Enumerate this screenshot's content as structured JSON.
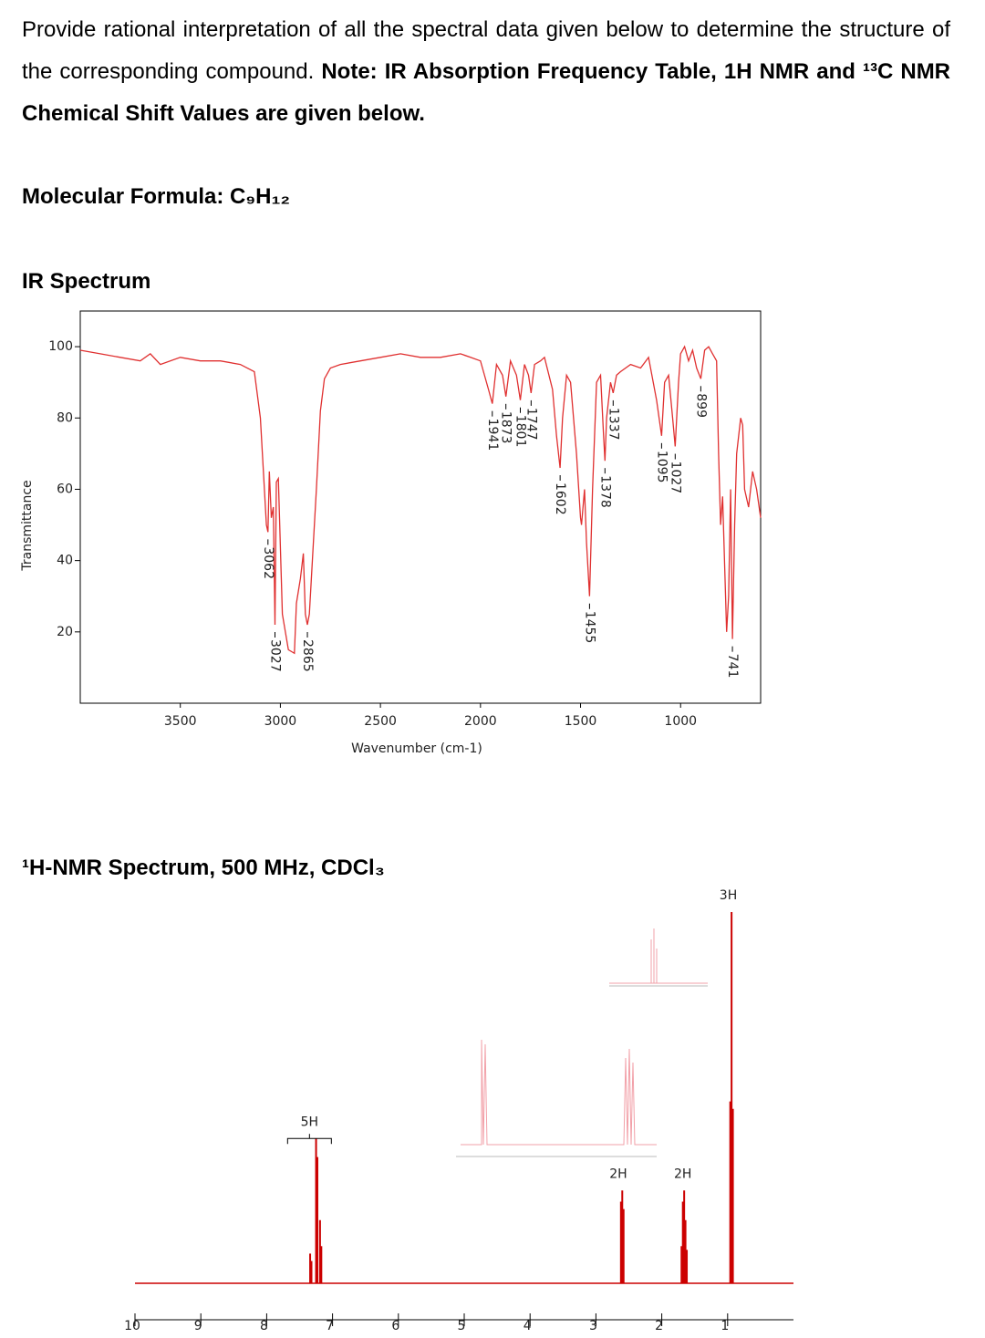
{
  "text": {
    "intro": "Provide rational interpretation of all the spectral data given below to determine the structure of the corresponding compound.",
    "note": "Note: IR Absorption Frequency Table, 1H NMR and ¹³C NMR Chemical Shift Values are given below.",
    "formula": "Molecular Formula: C₉H₁₂",
    "ir_heading": "IR Spectrum",
    "nmr_heading": "¹H-NMR Spectrum, 500 MHz, CDCl₃"
  },
  "chart_data": [
    {
      "type": "line",
      "xlabel": "Wavenumber (cm-1)",
      "ylabel": "Transmittance",
      "x": [
        4000,
        3900,
        3800,
        3700,
        3650,
        3600,
        3500,
        3400,
        3300,
        3200,
        3130,
        3100,
        3090,
        3070,
        3062,
        3055,
        3045,
        3035,
        3027,
        3020,
        3010,
        2990,
        2960,
        2930,
        2920,
        2900,
        2885,
        2875,
        2865,
        2855,
        2840,
        2820,
        2800,
        2780,
        2750,
        2700,
        2600,
        2500,
        2400,
        2300,
        2200,
        2100,
        2050,
        2000,
        1960,
        1941,
        1920,
        1890,
        1873,
        1850,
        1820,
        1801,
        1780,
        1760,
        1747,
        1730,
        1700,
        1680,
        1640,
        1620,
        1602,
        1590,
        1570,
        1550,
        1520,
        1500,
        1495,
        1480,
        1470,
        1455,
        1440,
        1420,
        1400,
        1385,
        1378,
        1370,
        1350,
        1337,
        1320,
        1300,
        1250,
        1200,
        1160,
        1120,
        1095,
        1080,
        1060,
        1040,
        1027,
        1010,
        1000,
        980,
        960,
        940,
        920,
        899,
        880,
        860,
        840,
        820,
        810,
        800,
        790,
        770,
        760,
        750,
        741,
        730,
        720,
        700,
        690,
        680,
        660,
        650,
        640,
        620,
        600
      ],
      "series": [
        {
          "color": "#e03030",
          "values": [
            99,
            98,
            97,
            96,
            98,
            95,
            97,
            96,
            96,
            95,
            93,
            80,
            70,
            50,
            48,
            65,
            52,
            55,
            22,
            62,
            63,
            25,
            15,
            14,
            28,
            35,
            42,
            25,
            22,
            25,
            40,
            60,
            82,
            91,
            94,
            95,
            96,
            97,
            98,
            97,
            97,
            98,
            97,
            96,
            88,
            84,
            95,
            92,
            86,
            96,
            92,
            85,
            95,
            92,
            87,
            95,
            96,
            97,
            88,
            75,
            66,
            80,
            92,
            90,
            70,
            52,
            50,
            60,
            45,
            30,
            60,
            90,
            92,
            75,
            68,
            80,
            90,
            87,
            92,
            93,
            95,
            94,
            97,
            85,
            75,
            90,
            92,
            80,
            72,
            90,
            98,
            100,
            96,
            99,
            94,
            91,
            99,
            100,
            98,
            96,
            70,
            50,
            58,
            20,
            30,
            60,
            18,
            50,
            70,
            80,
            78,
            60,
            55,
            60,
            65,
            60,
            52
          ]
        }
      ],
      "xlim": [
        4000,
        600
      ],
      "xticks": [
        3500,
        3000,
        2500,
        2000,
        1500,
        1000
      ],
      "ylim": [
        0,
        110
      ],
      "yticks": [
        20,
        40,
        60,
        80,
        100
      ],
      "peak_labels": [
        3062,
        3027,
        2865,
        1941,
        1873,
        1801,
        1747,
        1602,
        1455,
        1378,
        1337,
        1095,
        1027,
        899,
        741
      ]
    },
    {
      "type": "stem",
      "x": [
        7.34,
        7.32,
        7.25,
        7.23,
        7.19,
        7.17,
        2.62,
        2.6,
        2.58,
        1.7,
        1.68,
        1.66,
        1.64,
        1.62,
        0.96,
        0.94,
        0.92
      ],
      "values": [
        8,
        6,
        39,
        34,
        17,
        10,
        22,
        25,
        20,
        10,
        22,
        25,
        17,
        9,
        49,
        100,
        47
      ],
      "color": "#cc0000",
      "xlim": [
        10,
        0
      ],
      "xticks": [
        10,
        9,
        8,
        7,
        6,
        5,
        4,
        3,
        2,
        1
      ],
      "ylim": [
        0,
        100
      ],
      "integrations": [
        {
          "x": 7.35,
          "label": "5H"
        },
        {
          "x": 2.66,
          "label": "2H"
        },
        {
          "x": 1.68,
          "label": "2H"
        },
        {
          "x": 0.99,
          "label": "3H"
        }
      ]
    }
  ]
}
